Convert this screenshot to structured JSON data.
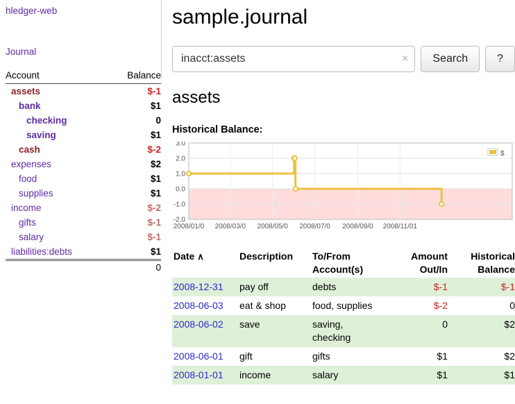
{
  "colors": {
    "link": "#5e2ba2",
    "negative_strong": "#8b2525",
    "negative": "#cc2222",
    "negative_soft": "#bf6a6a",
    "date_link": "#2929cc",
    "row_shade": "#dff0d8",
    "chart_line": "#edc240",
    "chart_negative_region": "#ffdddd"
  },
  "sidebar": {
    "app_title": "hledger-web",
    "nav_journal": "Journal",
    "accounts": {
      "headers": {
        "account": "Account",
        "balance": "Balance"
      },
      "rows": [
        {
          "name": "assets",
          "balance": "$-1",
          "depth": 0,
          "emph": true,
          "name_style": "negative-strong",
          "balance_style": "negative"
        },
        {
          "name": "bank",
          "balance": "$1",
          "depth": 1,
          "emph": true,
          "name_style": "link",
          "balance_style": "normal"
        },
        {
          "name": "checking",
          "balance": "0",
          "depth": 2,
          "emph": true,
          "name_style": "link",
          "balance_style": "normal"
        },
        {
          "name": "saving",
          "balance": "$1",
          "depth": 2,
          "emph": true,
          "name_style": "link",
          "balance_style": "normal"
        },
        {
          "name": "cash",
          "balance": "$-2",
          "depth": 1,
          "emph": true,
          "name_style": "negative-strong",
          "balance_style": "negative"
        },
        {
          "name": "expenses",
          "balance": "$2",
          "depth": 0,
          "emph": false,
          "name_style": "link",
          "balance_style": "normal"
        },
        {
          "name": "food",
          "balance": "$1",
          "depth": 1,
          "emph": false,
          "name_style": "link",
          "balance_style": "normal"
        },
        {
          "name": "supplies",
          "balance": "$1",
          "depth": 1,
          "emph": false,
          "name_style": "link",
          "balance_style": "normal"
        },
        {
          "name": "income",
          "balance": "$-2",
          "depth": 0,
          "emph": false,
          "name_style": "link",
          "balance_style": "negative-soft"
        },
        {
          "name": "gifts",
          "balance": "$-1",
          "depth": 1,
          "emph": false,
          "name_style": "link",
          "balance_style": "negative-soft"
        },
        {
          "name": "salary",
          "balance": "$-1",
          "depth": 1,
          "emph": false,
          "name_style": "link",
          "balance_style": "negative-soft"
        },
        {
          "name": "liabilities:debts",
          "balance": "$1",
          "depth": 0,
          "emph": false,
          "name_style": "link",
          "balance_style": "normal"
        }
      ],
      "total": "0"
    }
  },
  "main": {
    "title": "sample.journal",
    "search": {
      "value": "inacct:assets",
      "clear_icon": "×",
      "button_label": "Search",
      "help_label": "?"
    },
    "account_heading": "assets",
    "chart_label": "Historical Balance:",
    "register": {
      "headers": {
        "date": "Date",
        "sort_indicator": "∧",
        "description": "Description",
        "accounts": "To/From\nAccount(s)",
        "amount": "Amount\nOut/In",
        "balance": "Historical\nBalance"
      },
      "rows": [
        {
          "date": "2008-12-31",
          "description": "pay off",
          "accounts": "debts",
          "amount": "$-1",
          "amount_negative": true,
          "balance": "$-1",
          "balance_negative": true,
          "shaded": true
        },
        {
          "date": "2008-06-03",
          "description": "eat & shop",
          "accounts": "food, supplies",
          "amount": "$-2",
          "amount_negative": true,
          "balance": "0",
          "balance_negative": false,
          "shaded": false
        },
        {
          "date": "2008-06-02",
          "description": "save",
          "accounts": "saving,\nchecking",
          "amount": "0",
          "amount_negative": false,
          "balance": "$2",
          "balance_negative": false,
          "shaded": true
        },
        {
          "date": "2008-06-01",
          "description": "gift",
          "accounts": "gifts",
          "amount": "$1",
          "amount_negative": false,
          "balance": "$2",
          "balance_negative": false,
          "shaded": false
        },
        {
          "date": "2008-01-01",
          "description": "income",
          "accounts": "salary",
          "amount": "$1",
          "amount_negative": false,
          "balance": "$1",
          "balance_negative": false,
          "shaded": true
        }
      ]
    }
  },
  "chart_data": {
    "type": "line",
    "step": true,
    "title": "Historical Balance",
    "legend": [
      {
        "label": "$",
        "color": "#edc240"
      }
    ],
    "series": [
      {
        "name": "$",
        "points": [
          {
            "date": "2008-01-01",
            "day": 0,
            "value": 1
          },
          {
            "date": "2008-06-01",
            "day": 152,
            "value": 2
          },
          {
            "date": "2008-06-02",
            "day": 153,
            "value": 2
          },
          {
            "date": "2008-06-03",
            "day": 154,
            "value": 0
          },
          {
            "date": "2008-12-31",
            "day": 365,
            "value": -1
          }
        ]
      }
    ],
    "x_domain_days": [
      0,
      467
    ],
    "x_ticks": [
      {
        "day": 0,
        "label": "2008/01/0"
      },
      {
        "day": 60,
        "label": "2008/03/0"
      },
      {
        "day": 121,
        "label": "2008/05/0"
      },
      {
        "day": 182,
        "label": "2008/07/0"
      },
      {
        "day": 244,
        "label": "2008/09/0"
      },
      {
        "day": 305,
        "label": "2008/11/01"
      }
    ],
    "y_ticks": [
      3.0,
      2.0,
      1.0,
      0.0,
      -1.0,
      -2.0
    ],
    "ylim": [
      -2.0,
      3.0
    ],
    "negative_region": {
      "from": 0,
      "to": -2,
      "color": "#ffdddd"
    },
    "line_color": "#edc240",
    "grid": true,
    "legend_position": "top-right"
  }
}
